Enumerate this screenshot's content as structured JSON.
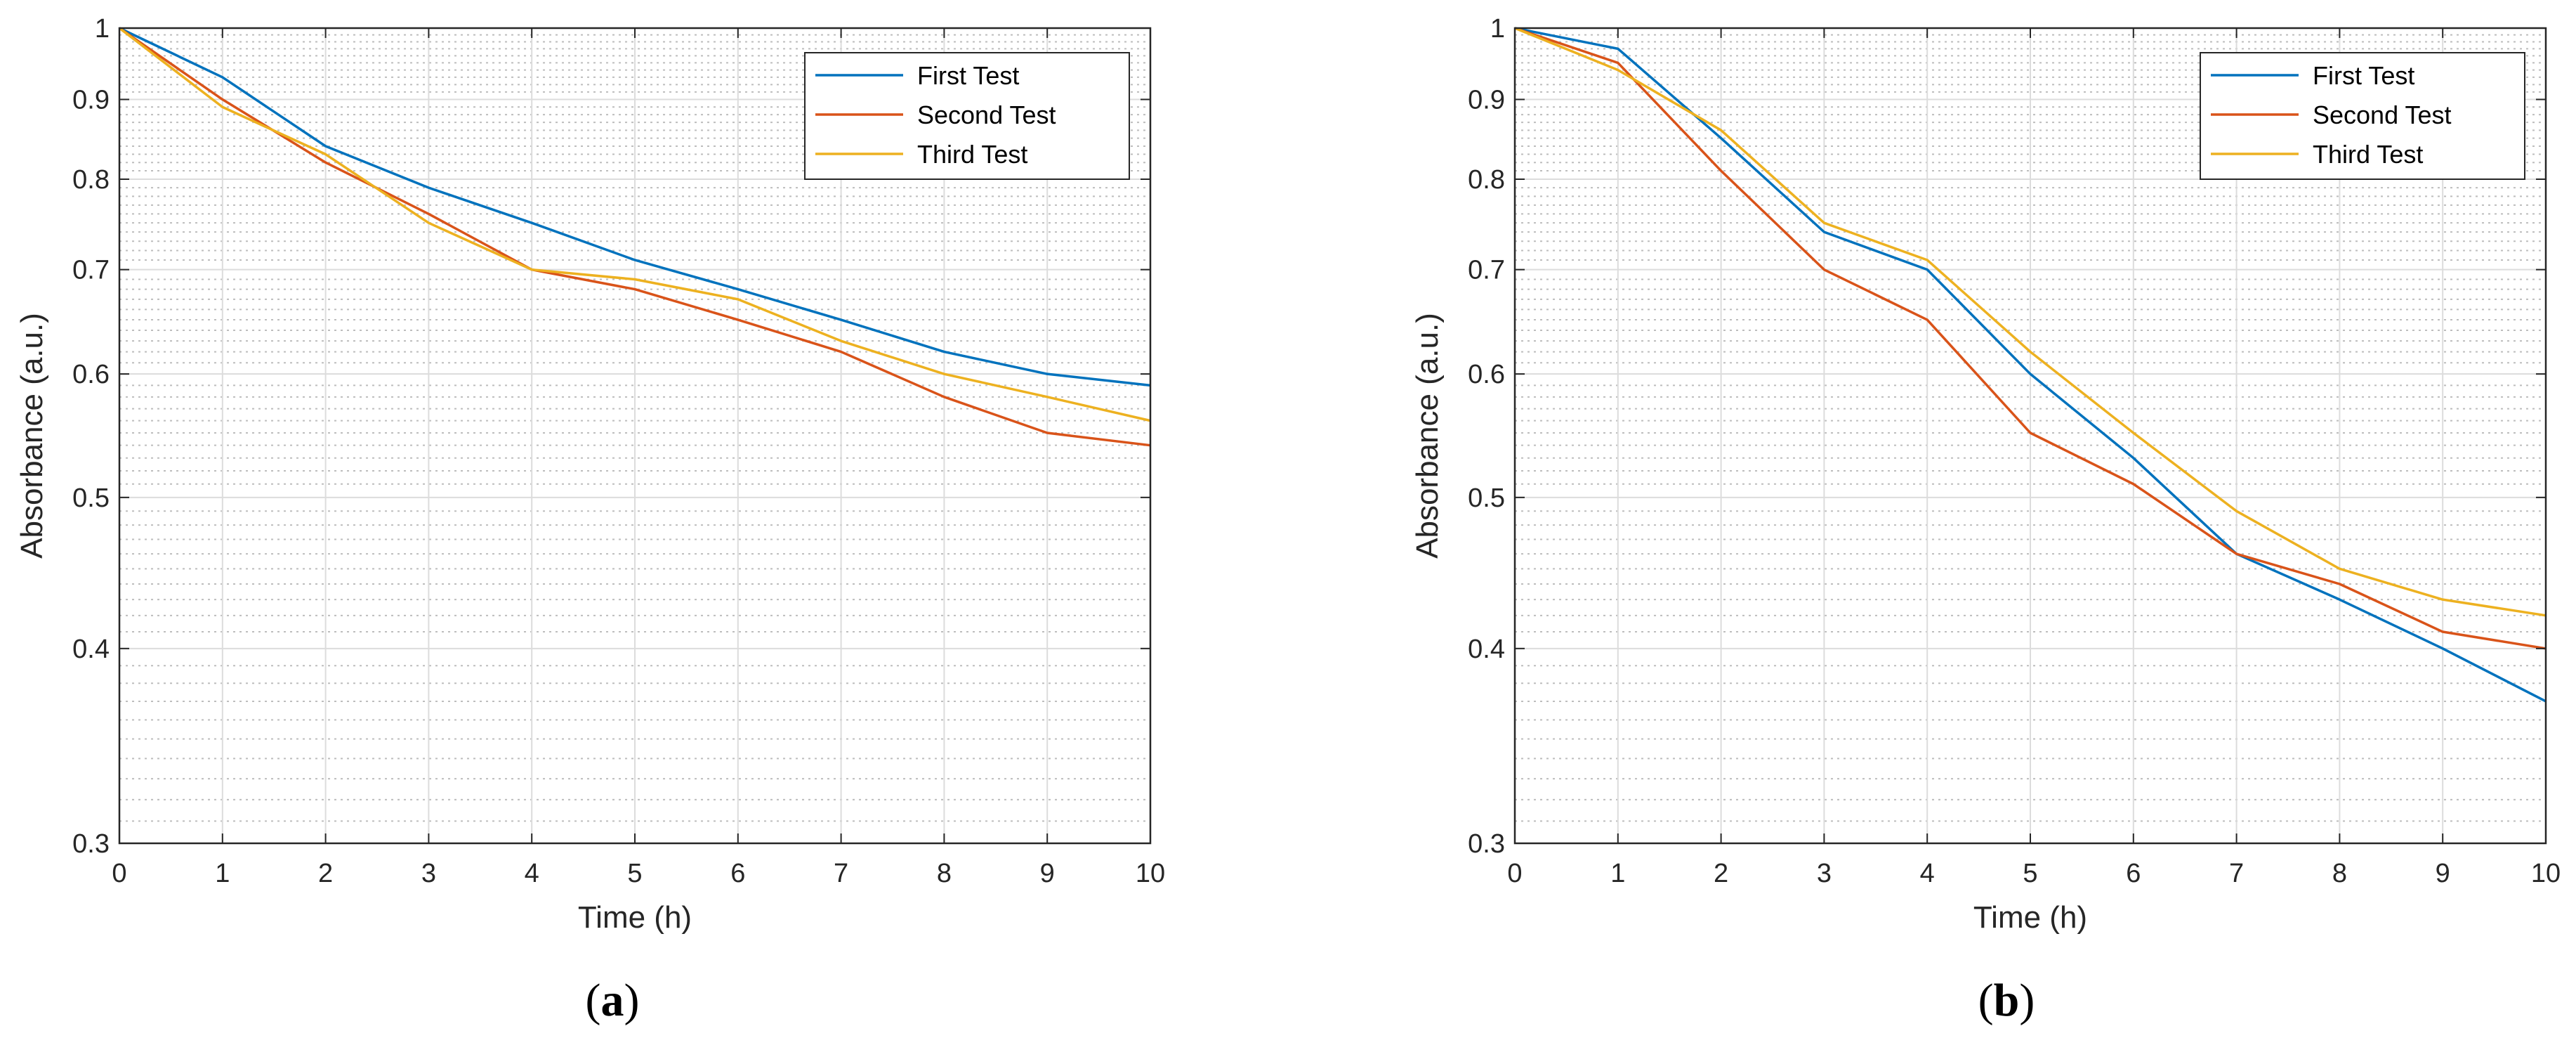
{
  "chart_data": [
    {
      "type": "line",
      "panel_label": "a",
      "panel_label_open": "(",
      "panel_label_close": ")",
      "xlabel": "Time (h)",
      "ylabel": "Absorbance (a.u.)",
      "xlim": [
        0,
        10
      ],
      "ylim": [
        0.3,
        1
      ],
      "yscale": "log",
      "grid": true,
      "legend_position": "top-right",
      "x": [
        0,
        1,
        2,
        3,
        4,
        5,
        6,
        7,
        8,
        9,
        10
      ],
      "xticks": [
        "0",
        "1",
        "2",
        "3",
        "4",
        "5",
        "6",
        "7",
        "8",
        "9",
        "10"
      ],
      "yticks": [
        "0.3",
        "0.4",
        "0.5",
        "0.6",
        "0.7",
        "0.8",
        "0.9",
        "1"
      ],
      "series": [
        {
          "name": "First Test",
          "color": "#0072BD",
          "values": [
            1.0,
            0.93,
            0.84,
            0.79,
            0.75,
            0.71,
            0.68,
            0.65,
            0.62,
            0.6,
            0.59
          ]
        },
        {
          "name": "Second Test",
          "color": "#D95319",
          "values": [
            1.0,
            0.9,
            0.82,
            0.76,
            0.7,
            0.68,
            0.65,
            0.62,
            0.58,
            0.55,
            0.54
          ]
        },
        {
          "name": "Third Test",
          "color": "#EDB120",
          "values": [
            1.0,
            0.89,
            0.83,
            0.75,
            0.7,
            0.69,
            0.67,
            0.63,
            0.6,
            0.58,
            0.56
          ]
        }
      ]
    },
    {
      "type": "line",
      "panel_label": "b",
      "panel_label_open": "(",
      "panel_label_close": ")",
      "xlabel": "Time (h)",
      "ylabel": "Absorbance (a.u.)",
      "xlim": [
        0,
        10
      ],
      "ylim": [
        0.3,
        1
      ],
      "yscale": "log",
      "grid": true,
      "legend_position": "top-right",
      "x": [
        0,
        1,
        2,
        3,
        4,
        5,
        6,
        7,
        8,
        9,
        10
      ],
      "xticks": [
        "0",
        "1",
        "2",
        "3",
        "4",
        "5",
        "6",
        "7",
        "8",
        "9",
        "10"
      ],
      "yticks": [
        "0.3",
        "0.4",
        "0.5",
        "0.6",
        "0.7",
        "0.8",
        "0.9",
        "1"
      ],
      "series": [
        {
          "name": "First Test",
          "color": "#0072BD",
          "values": [
            1.0,
            0.97,
            0.85,
            0.74,
            0.7,
            0.6,
            0.53,
            0.46,
            0.43,
            0.4,
            0.37
          ]
        },
        {
          "name": "Second Test",
          "color": "#D95319",
          "values": [
            1.0,
            0.95,
            0.81,
            0.7,
            0.65,
            0.55,
            0.51,
            0.46,
            0.44,
            0.41,
            0.4
          ]
        },
        {
          "name": "Third Test",
          "color": "#EDB120",
          "values": [
            1.0,
            0.94,
            0.86,
            0.75,
            0.71,
            0.62,
            0.55,
            0.49,
            0.45,
            0.43,
            0.42
          ]
        }
      ]
    }
  ]
}
